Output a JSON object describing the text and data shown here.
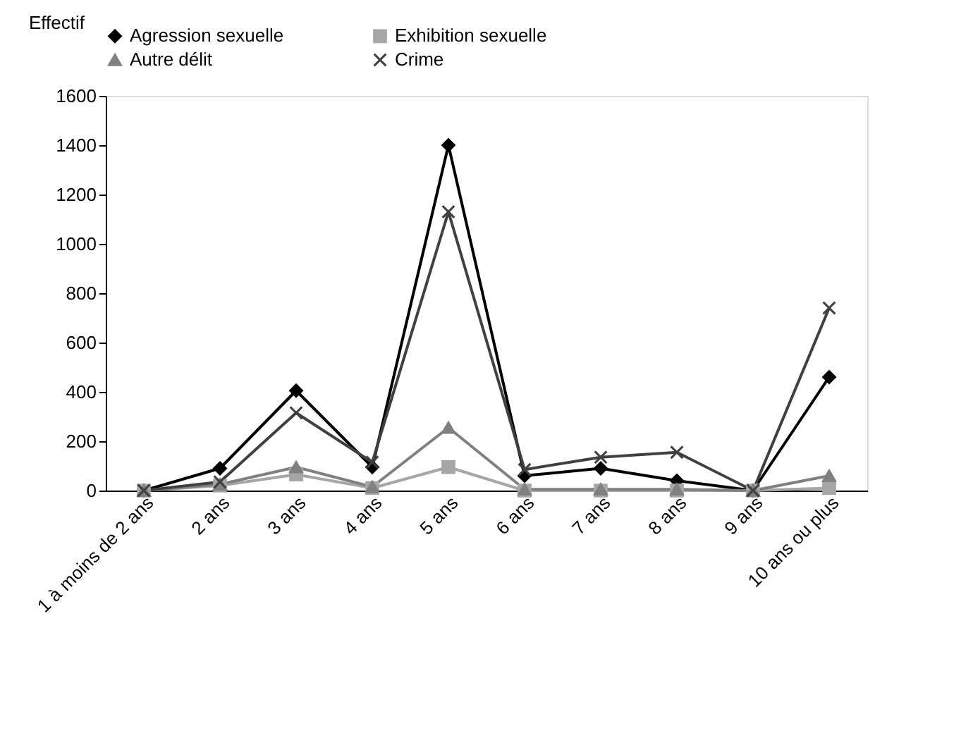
{
  "chart_data": {
    "type": "line",
    "ylabel": "Effectif",
    "categories": [
      "1 à moins de 2 ans",
      "2 ans",
      "3 ans",
      "4 ans",
      "5 ans",
      "6 ans",
      "7 ans",
      "8 ans",
      "9 ans",
      "10 ans ou plus"
    ],
    "series": [
      {
        "name": "Agression sexuelle",
        "color": "#000000",
        "marker": "diamond",
        "values": [
          0,
          90,
          405,
          95,
          1400,
          60,
          90,
          40,
          0,
          460
        ]
      },
      {
        "name": "Exhibition sexuelle",
        "color": "#a6a6a6",
        "marker": "square",
        "values": [
          0,
          20,
          65,
          10,
          95,
          0,
          0,
          0,
          0,
          10
        ]
      },
      {
        "name": "Autre délit",
        "color": "#808080",
        "marker": "triangle",
        "values": [
          0,
          25,
          95,
          15,
          255,
          5,
          5,
          5,
          0,
          60
        ]
      },
      {
        "name": "Crime",
        "color": "#404040",
        "marker": "cross",
        "values": [
          0,
          35,
          315,
          115,
          1130,
          85,
          135,
          155,
          0,
          740
        ]
      }
    ],
    "ylim": [
      0,
      1600
    ],
    "yticks": [
      0,
      200,
      400,
      600,
      800,
      1000,
      1200,
      1400,
      1600
    ],
    "grid": false,
    "legend": "top",
    "line_style": "solid"
  }
}
